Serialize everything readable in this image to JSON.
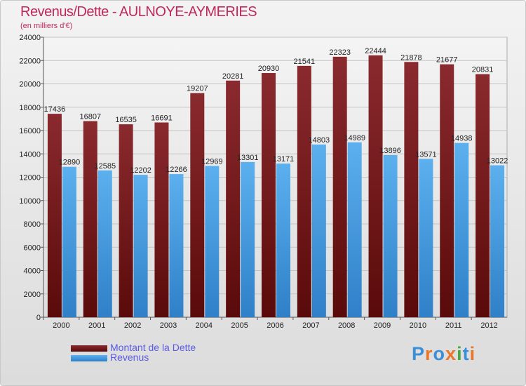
{
  "chart_data": {
    "type": "bar",
    "title": "Revenus/Dette - AULNOYE-AYMERIES",
    "subtitle": "(en milliers d'€)",
    "categories": [
      "2000",
      "2001",
      "2002",
      "2003",
      "2004",
      "2005",
      "2006",
      "2007",
      "2008",
      "2009",
      "2010",
      "2011",
      "2012"
    ],
    "series": [
      {
        "name": "Montant de la Dette",
        "color": "#7a1f1f",
        "values": [
          17436,
          16807,
          16535,
          16691,
          19207,
          20281,
          20930,
          21541,
          22323,
          22444,
          21878,
          21677,
          20831
        ]
      },
      {
        "name": "Revenus",
        "color": "#4aa3e6",
        "values": [
          12890,
          12585,
          12202,
          12266,
          12969,
          13301,
          13171,
          14803,
          14989,
          13896,
          13571,
          14938,
          13022
        ]
      }
    ],
    "ylim": [
      0,
      24000
    ],
    "yticks": [
      0,
      2000,
      4000,
      6000,
      8000,
      10000,
      12000,
      14000,
      16000,
      18000,
      20000,
      22000,
      24000
    ],
    "grid": true,
    "legend_position": "bottom-left"
  },
  "brand": {
    "text": "Proxiti",
    "letter_colors": [
      "#3a8fd8",
      "#e8772a",
      "#3a8fd8",
      "#e8772a",
      "#44aa44",
      "#3a8fd8",
      "#e8772a"
    ]
  }
}
